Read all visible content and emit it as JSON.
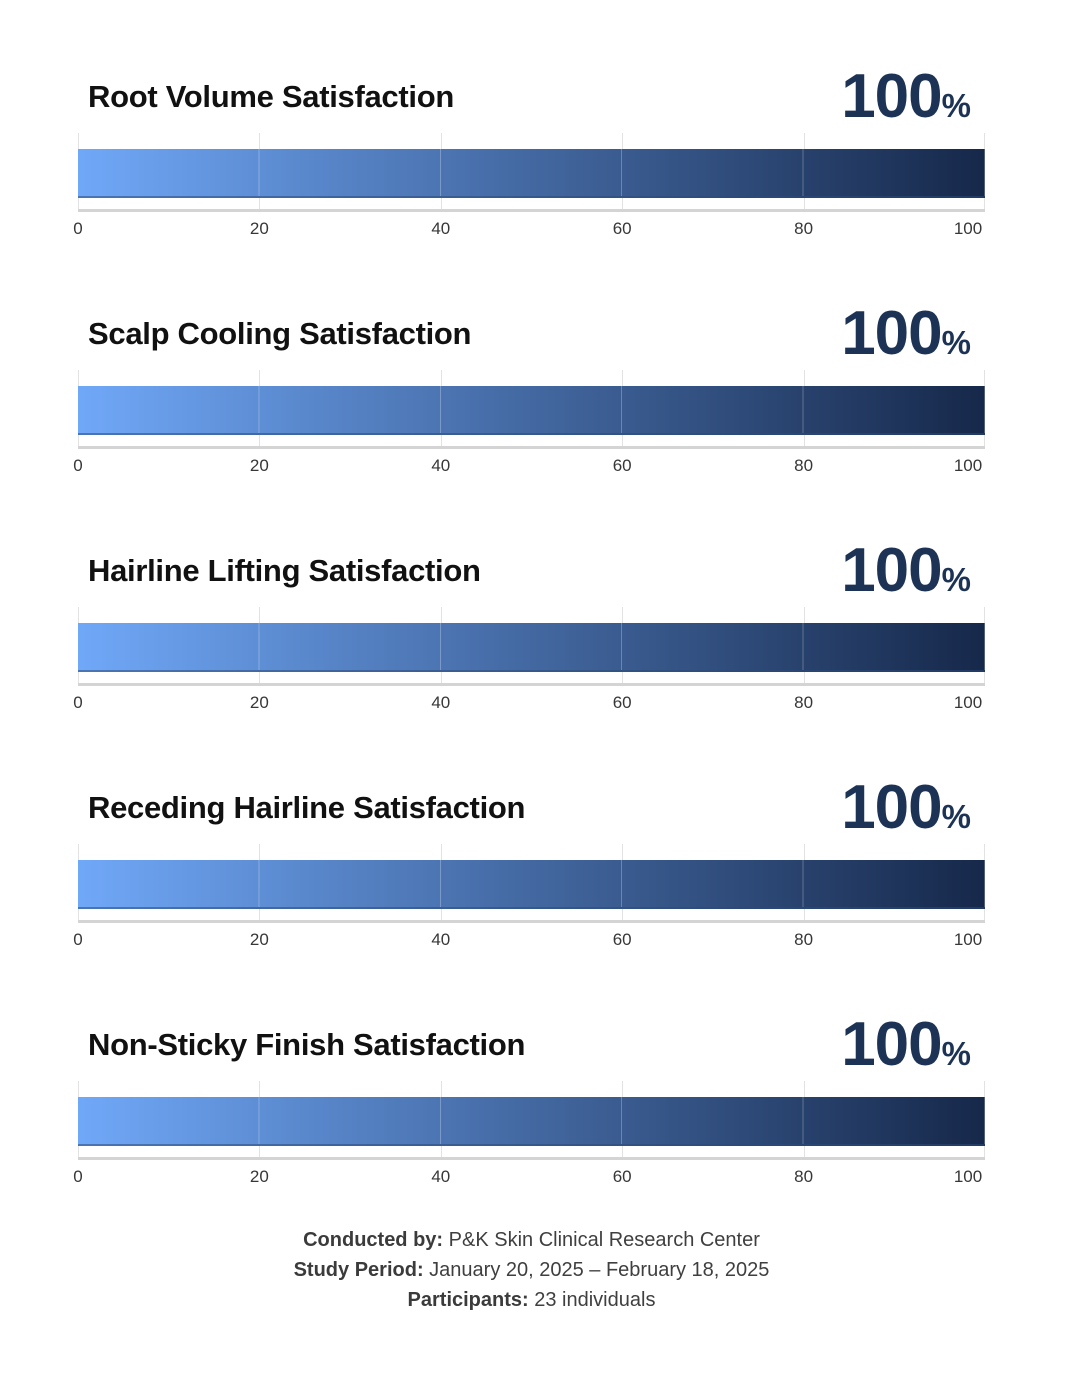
{
  "charts": [
    {
      "title": "Root Volume Satisfaction",
      "value": "100",
      "percent": "%"
    },
    {
      "title": "Scalp Cooling Satisfaction",
      "value": "100",
      "percent": "%"
    },
    {
      "title": "Hairline Lifting Satisfaction",
      "value": "100",
      "percent": "%"
    },
    {
      "title": "Receding Hairline Satisfaction",
      "value": "100",
      "percent": "%"
    },
    {
      "title": "Non-Sticky Finish Satisfaction",
      "value": "100",
      "percent": "%"
    }
  ],
  "axis": {
    "ticks": [
      "0",
      "20",
      "40",
      "60",
      "80",
      "100"
    ]
  },
  "footer": {
    "lines": [
      {
        "label": "Conducted by:",
        "text": "P&K Skin Clinical Research Center"
      },
      {
        "label": "Study Period:",
        "text": "January 20, 2025 – February 18, 2025"
      },
      {
        "label": "Participants:",
        "text": "23 individuals"
      }
    ]
  },
  "colors": {
    "bar_gradient_start": "#70A8F8",
    "bar_gradient_end": "#16284A",
    "value_navy": "#1D3356",
    "title_black": "#111111",
    "gridline": "#E2E2E2",
    "axis_line": "#D4D4D4",
    "tick_text": "#373737",
    "footer_text": "#3F3F3F"
  },
  "chart_data": [
    {
      "type": "bar",
      "orientation": "horizontal",
      "title": "Root Volume Satisfaction",
      "categories": [
        "Root Volume Satisfaction"
      ],
      "values": [
        100
      ],
      "data_label": "100%",
      "xlabel": "",
      "xlim": [
        0,
        100
      ],
      "xticks": [
        0,
        20,
        40,
        60,
        80,
        100
      ],
      "grid": true,
      "legend": false
    },
    {
      "type": "bar",
      "orientation": "horizontal",
      "title": "Scalp Cooling Satisfaction",
      "categories": [
        "Scalp Cooling Satisfaction"
      ],
      "values": [
        100
      ],
      "data_label": "100%",
      "xlabel": "",
      "xlim": [
        0,
        100
      ],
      "xticks": [
        0,
        20,
        40,
        60,
        80,
        100
      ],
      "grid": true,
      "legend": false
    },
    {
      "type": "bar",
      "orientation": "horizontal",
      "title": "Hairline Lifting Satisfaction",
      "categories": [
        "Hairline Lifting Satisfaction"
      ],
      "values": [
        100
      ],
      "data_label": "100%",
      "xlabel": "",
      "xlim": [
        0,
        100
      ],
      "xticks": [
        0,
        20,
        40,
        60,
        80,
        100
      ],
      "grid": true,
      "legend": false
    },
    {
      "type": "bar",
      "orientation": "horizontal",
      "title": "Receding Hairline Satisfaction",
      "categories": [
        "Receding Hairline Satisfaction"
      ],
      "values": [
        100
      ],
      "data_label": "100%",
      "xlabel": "",
      "xlim": [
        0,
        100
      ],
      "xticks": [
        0,
        20,
        40,
        60,
        80,
        100
      ],
      "grid": true,
      "legend": false
    },
    {
      "type": "bar",
      "orientation": "horizontal",
      "title": "Non-Sticky Finish Satisfaction",
      "categories": [
        "Non-Sticky Finish Satisfaction"
      ],
      "values": [
        100
      ],
      "data_label": "100%",
      "xlabel": "",
      "xlim": [
        0,
        100
      ],
      "xticks": [
        0,
        20,
        40,
        60,
        80,
        100
      ],
      "grid": true,
      "legend": false
    }
  ]
}
